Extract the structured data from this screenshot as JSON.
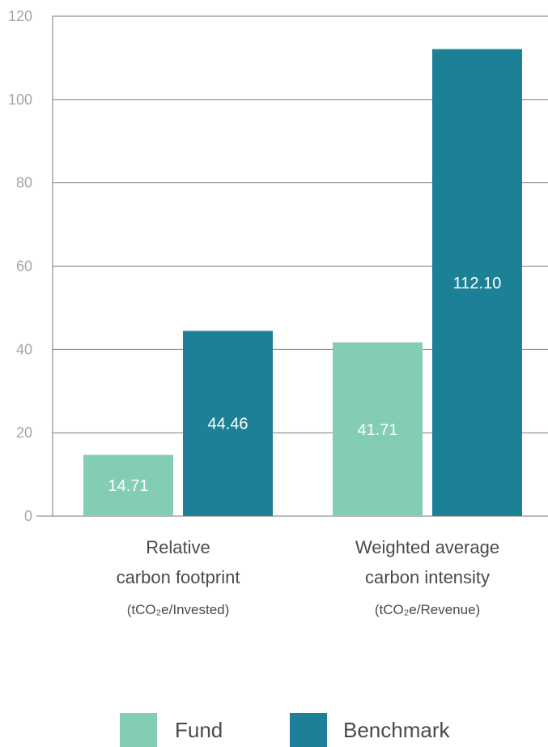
{
  "chart_data": {
    "type": "bar",
    "categories": [
      {
        "line1": "Relative",
        "line2": "carbon footprint",
        "unit": "(tCO₂e/Invested)"
      },
      {
        "line1": "Weighted average",
        "line2": "carbon intensity",
        "unit": "(tCO₂e/Revenue)"
      }
    ],
    "series": [
      {
        "name": "Fund",
        "values": [
          14.71,
          41.71
        ],
        "labels": [
          "14.71",
          "41.71"
        ],
        "color": "#84cdb5"
      },
      {
        "name": "Benchmark",
        "values": [
          44.46,
          112.1
        ],
        "labels": [
          "44.46",
          "112.10"
        ],
        "color": "#1c8196"
      }
    ],
    "ylim": [
      0,
      120
    ],
    "yticks": [
      0,
      20,
      40,
      60,
      80,
      100,
      120
    ],
    "ytick_labels": [
      "0",
      "20",
      "40",
      "60",
      "80",
      "100",
      "120"
    ],
    "grid": true,
    "legend": "bottom",
    "grid_color": "#7a7a7a",
    "axis_label_color": "#a6a6a6",
    "text_color": "#4a4a4a"
  }
}
